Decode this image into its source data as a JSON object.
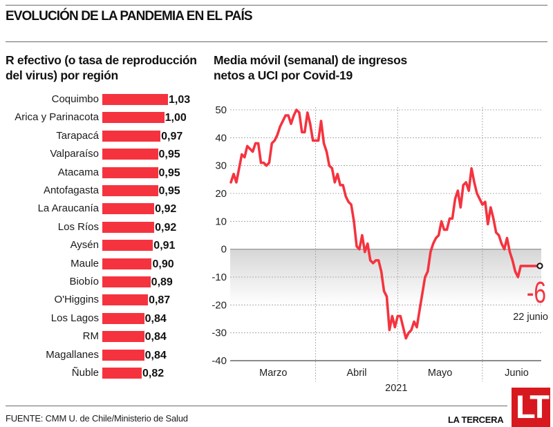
{
  "header": {
    "title": "EVOLUCIÓN DE LA PANDEMIA EN EL PAÍS"
  },
  "footer": {
    "source": "FUENTE: CMM U. de Chile/Ministerio de Salud",
    "brand": "LA TERCERA",
    "logo_text": "LT",
    "logo_color": "#d7191f"
  },
  "chart_data": [
    {
      "type": "bar",
      "orientation": "horizontal",
      "title": "R efectivo (o tasa de reproducción del virus) por región",
      "title_lines": [
        "R efectivo (o tasa de reproducción",
        "del virus) por región"
      ],
      "bar_color": "#f5333f",
      "categories": [
        "Coquimbo",
        "Arica y Parinacota",
        "Tarapacá",
        "Valparaíso",
        "Atacama",
        "Antofagasta",
        "La Araucanía",
        "Los Ríos",
        "Aysén",
        "Maule",
        "Biobío",
        "O'Higgins",
        "Los Lagos",
        "RM",
        "Magallanes",
        "Ñuble"
      ],
      "values": [
        1.03,
        1.0,
        0.97,
        0.95,
        0.95,
        0.95,
        0.92,
        0.92,
        0.91,
        0.9,
        0.89,
        0.87,
        0.84,
        0.84,
        0.84,
        0.82
      ],
      "value_labels": [
        "1,03",
        "1,00",
        "0,97",
        "0,95",
        "0,95",
        "0,95",
        "0,92",
        "0,92",
        "0,91",
        "0,90",
        "0,89",
        "0,87",
        "0,84",
        "0,84",
        "0,84",
        "0,82"
      ]
    },
    {
      "type": "line",
      "title": "Media móvil (semanal) de ingresos netos a UCI por Covid-19",
      "title_lines": [
        "Media móvil (semanal) de ingresos",
        "netos a UCI por Covid-19"
      ],
      "line_color": "#f5333f",
      "ylim": [
        -40,
        50
      ],
      "yticks": [
        50,
        40,
        30,
        20,
        10,
        0,
        -10,
        -20,
        -30,
        -40
      ],
      "ytick_labels": [
        "50",
        "40",
        "30",
        "20",
        "10",
        "0",
        "-10",
        "-20",
        "-30",
        "-40"
      ],
      "grid": true,
      "shaded_band": [
        -20,
        0
      ],
      "xlabel": "2021",
      "x_month_labels": [
        "Marzo",
        "Abril",
        "Mayo",
        "Junio"
      ],
      "x_range_days": [
        0,
        113
      ],
      "month_boundaries_days": [
        31,
        61,
        92
      ],
      "series": [
        {
          "name": "Ingresos netos UCI (media móvil semanal)",
          "x": [
            0,
            1,
            2,
            3,
            4,
            5,
            6,
            7,
            8,
            9,
            10,
            11,
            12,
            13,
            14,
            15,
            16,
            17,
            18,
            19,
            20,
            21,
            22,
            23,
            24,
            25,
            26,
            27,
            28,
            29,
            30,
            31,
            32,
            33,
            34,
            35,
            36,
            37,
            38,
            39,
            40,
            41,
            42,
            43,
            44,
            45,
            46,
            47,
            48,
            49,
            50,
            51,
            52,
            53,
            54,
            55,
            56,
            57,
            58,
            59,
            60,
            61,
            62,
            63,
            64,
            65,
            66,
            67,
            68,
            69,
            70,
            71,
            72,
            73,
            74,
            75,
            76,
            77,
            78,
            79,
            80,
            81,
            82,
            83,
            84,
            85,
            86,
            87,
            88,
            89,
            90,
            91,
            92,
            93,
            94,
            95,
            96,
            97,
            98,
            99,
            100,
            101,
            102,
            103,
            104,
            105,
            106,
            107,
            108,
            109,
            110,
            111,
            112,
            113
          ],
          "values": [
            24,
            27,
            24,
            29,
            34,
            33,
            37,
            36,
            35,
            38,
            38,
            31,
            31,
            30,
            31,
            38,
            39,
            41,
            44,
            46,
            48,
            48,
            45,
            48,
            50,
            49,
            42,
            42,
            49,
            45,
            39,
            39,
            39,
            46,
            38,
            35,
            30,
            29,
            24,
            27,
            23,
            23,
            19,
            17,
            16,
            10,
            1,
            0,
            5,
            -1,
            2,
            -4,
            -5,
            -4,
            -4,
            -8,
            -15,
            -17,
            -29,
            -24,
            -28,
            -24,
            -24,
            -28,
            -32,
            -30,
            -29,
            -26,
            -28,
            -22,
            -16,
            -10,
            -8,
            -1,
            2,
            4,
            5,
            10,
            7,
            7,
            11,
            11,
            18,
            21,
            15,
            23,
            24,
            21,
            29,
            24,
            20,
            18,
            16,
            17,
            9,
            15,
            11,
            6,
            5,
            2,
            0,
            4,
            -1,
            -4,
            -8,
            -10,
            -6,
            -6,
            -6,
            -6,
            -6,
            -6,
            -6,
            -6
          ],
          "end_marker": true
        }
      ],
      "annotations": [
        {
          "text": "-6",
          "value": -6,
          "color": "#f5333f"
        },
        {
          "text": "22 junio"
        }
      ]
    }
  ]
}
